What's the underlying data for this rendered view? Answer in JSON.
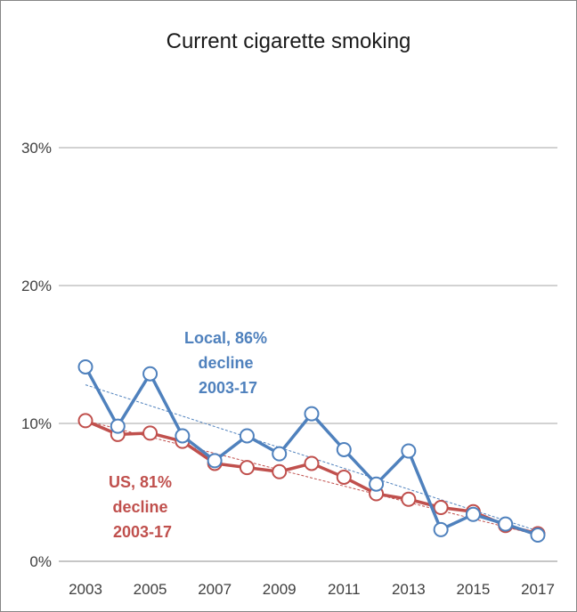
{
  "chart_data": {
    "type": "line",
    "title": "Current cigarette smoking",
    "xlabel": "",
    "ylabel": "",
    "ylim": [
      0,
      30
    ],
    "yticks": [
      0,
      10,
      20,
      30
    ],
    "ytick_labels": [
      "0%",
      "10%",
      "20%",
      "30%"
    ],
    "xlim": [
      2003,
      2017
    ],
    "xticks": [
      2003,
      2005,
      2007,
      2009,
      2011,
      2013,
      2015,
      2017
    ],
    "xtick_labels": [
      "2003",
      "2005",
      "2007",
      "2009",
      "2011",
      "2013",
      "2015",
      "2017"
    ],
    "grid": "horizontal",
    "legend": "none",
    "x": [
      2003,
      2004,
      2005,
      2006,
      2007,
      2008,
      2009,
      2010,
      2011,
      2012,
      2013,
      2014,
      2015,
      2016,
      2017
    ],
    "series": [
      {
        "values": [
          14.1,
          9.8,
          13.6,
          9.1,
          7.3,
          9.1,
          7.8,
          10.7,
          8.1,
          5.6,
          8.0,
          2.3,
          3.4,
          2.7,
          1.9
        ],
        "color": "#4F81BD",
        "trend": [
          12.8,
          2.2
        ]
      },
      {
        "values": [
          10.2,
          9.2,
          9.3,
          8.7,
          7.1,
          6.8,
          6.5,
          7.1,
          6.1,
          4.9,
          4.5,
          3.9,
          3.6,
          2.6,
          2.0
        ],
        "color": "#C0504D",
        "trend": [
          10.2,
          1.9
        ]
      }
    ],
    "annotations": [
      {
        "lines": [
          "Local, 86%",
          "decline",
          "2003-17"
        ],
        "color": "#4F81BD"
      },
      {
        "lines": [
          "US, 81%",
          "decline",
          "2003-17"
        ],
        "color": "#C0504D"
      }
    ]
  }
}
